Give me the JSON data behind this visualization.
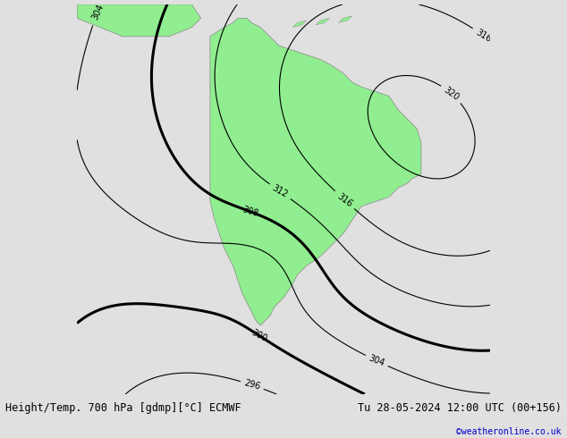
{
  "title": "Height/Temp. 700 hPa [gdmp][°C] ECMWF",
  "datetime_label": "Tu 28-05-2024 12:00 UTC (00+156)",
  "copyright": "©weatheronline.co.uk",
  "copyright_color": "#0000cc",
  "background_color": "#e0e0e0",
  "land_color": "#90ee90",
  "border_color": "#888888",
  "fig_width": 6.34,
  "fig_height": 4.9,
  "dpi": 100,
  "lon_min": -110,
  "lon_max": -20,
  "lat_min": -70,
  "lat_max": 15,
  "geopotential_color": "#000000",
  "temp_magenta_color": "#ff00bb",
  "temp_red_color": "#cc2200",
  "temp_orange_color": "#ff8800",
  "temp_green_color": "#88cc00",
  "title_fontsize": 8.5,
  "label_fontsize": 7
}
